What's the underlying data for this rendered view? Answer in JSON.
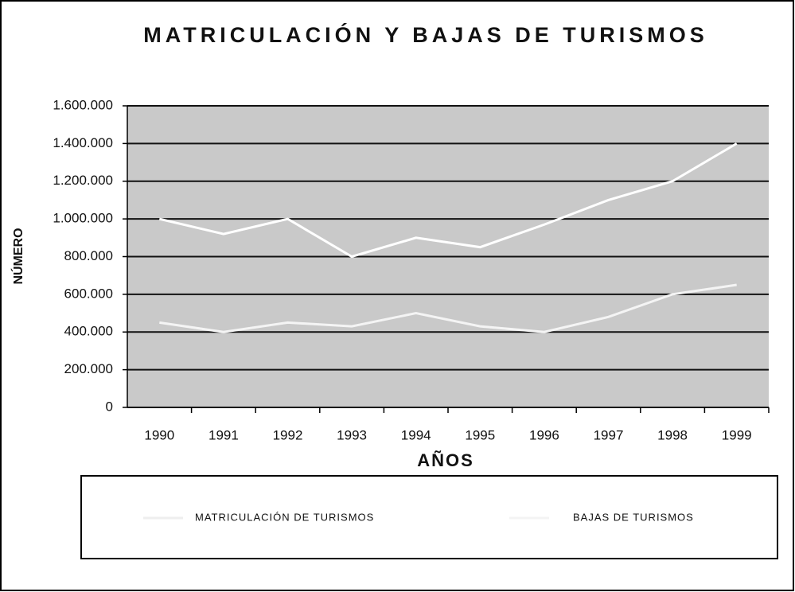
{
  "chart_data": {
    "type": "line",
    "title": "MATRICULACIÓN Y BAJAS DE TURISMOS",
    "x_label": "AÑOS",
    "y_label": "NÚMERO",
    "categories": [
      "1990",
      "1991",
      "1992",
      "1993",
      "1994",
      "1995",
      "1996",
      "1997",
      "1998",
      "1999"
    ],
    "series": [
      {
        "name": "MATRICULACIÓN DE TURISMOS",
        "color": "#ffffff",
        "values": [
          1000000,
          920000,
          1000000,
          800000,
          900000,
          850000,
          970000,
          1100000,
          1200000,
          1400000
        ]
      },
      {
        "name": "BAJAS DE TURISMOS",
        "color": "#f4f4f4",
        "values": [
          450000,
          400000,
          450000,
          430000,
          500000,
          430000,
          400000,
          480000,
          600000,
          650000
        ]
      }
    ],
    "ylim": [
      0,
      1600000
    ],
    "yticks": [
      0,
      {
        "value": 200000,
        "label": "200.000"
      },
      {
        "value": 400000,
        "label": "400.000"
      },
      {
        "value": 600000,
        "label": "600.000"
      },
      {
        "value": 800000,
        "label": "800.000"
      },
      {
        "value": 1000000,
        "label": "1.000.000"
      },
      {
        "value": 1200000,
        "label": "1.200.000"
      },
      {
        "value": 1400000,
        "label": "1.400.000"
      },
      {
        "value": 1600000,
        "label": "1.600.000"
      }
    ],
    "grid": true
  }
}
